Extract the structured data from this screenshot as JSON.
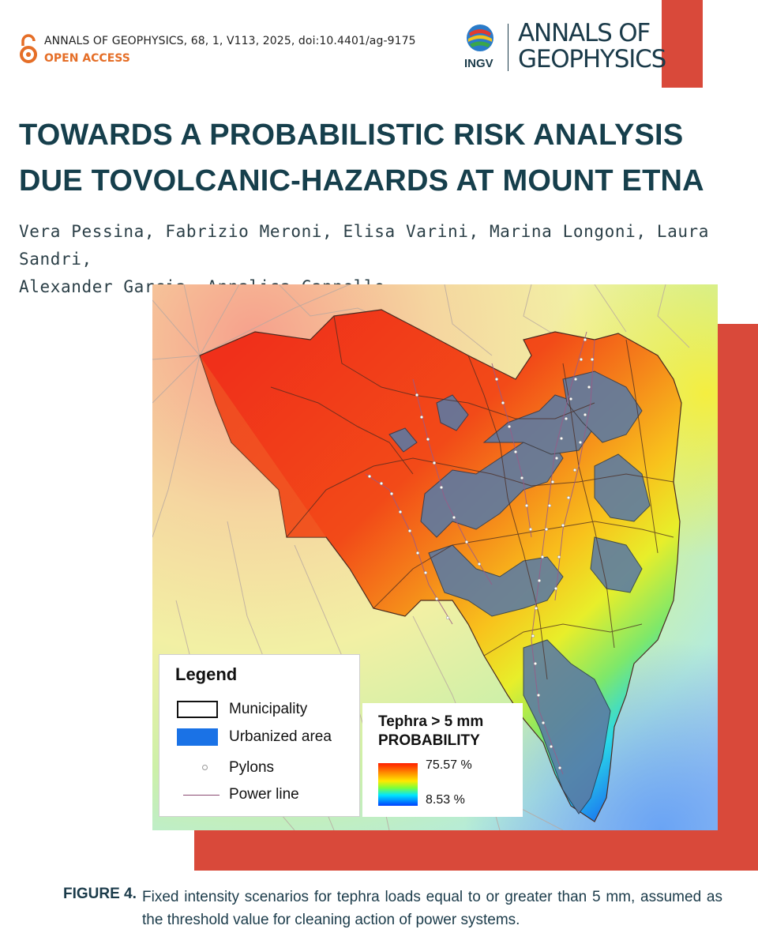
{
  "header": {
    "journal_line": "ANNALS OF GEOPHYSICS, 68, 1, V113, 2025, doi:10.4401/ag-9175",
    "open_access": "OPEN ACCESS",
    "ingv_label": "INGV",
    "brand_line1": "ANNALS OF",
    "brand_line2": "GEOPHYSICS"
  },
  "article": {
    "title": "TOWARDS A PROBABILISTIC RISK ANALYSIS\nDUE TOVOLCANIC-HAZARDS AT MOUNT ETNA",
    "authors": "Vera Pessina, Fabrizio Meroni, Elisa Varini, Marina Longoni, Laura Sandri,\nAlexander Garcia, Annalisa Cappello"
  },
  "figure": {
    "legend": {
      "title": "Legend",
      "items": [
        {
          "label": "Municipality",
          "icon": "municipality-outline"
        },
        {
          "label": "Urbanized area",
          "icon": "urban-swatch"
        },
        {
          "label": "Pylons",
          "icon": "pylon-dot"
        },
        {
          "label": "Power  line",
          "icon": "power-line"
        }
      ]
    },
    "probability": {
      "title": "Tephra > 5 mm\nPROBABILITY",
      "max": "75.57 %",
      "min": "8.53 %"
    }
  },
  "caption": {
    "label": "FIGURE 4.",
    "text": "Fixed intensity scenarios for tephra loads equal to or greater than 5 mm, assumed as the threshold value for cleaning action of power systems."
  },
  "colors": {
    "accent_red": "#d9493a",
    "navy": "#163f4c",
    "open_access_orange": "#e56e27",
    "urban_blue": "#1a72e6"
  }
}
